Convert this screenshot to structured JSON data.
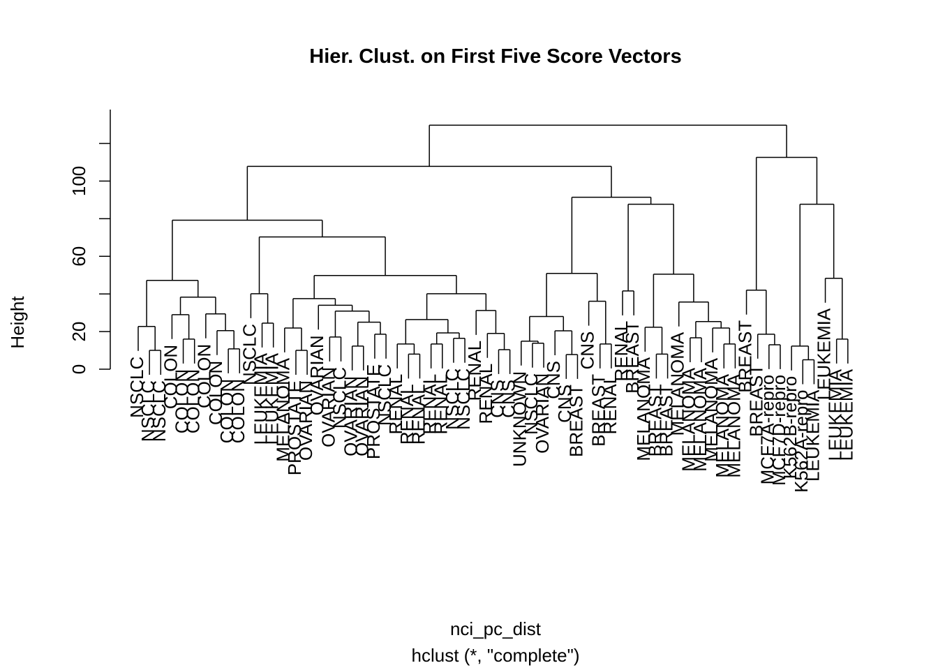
{
  "chart_data": {
    "type": "dendrogram",
    "title": "Hier. Clust. on First Five Score Vectors",
    "x_label": "nci_pc_dist",
    "subtitle": "hclust (*, \"complete\")",
    "y_label": "Height",
    "ylim": [
      0,
      138
    ],
    "yticks": [
      0,
      20,
      {
        "value": 40,
        "label": null
      },
      60,
      {
        "value": 80,
        "label": null
      },
      100,
      {
        "value": 120,
        "label": null
      }
    ],
    "hang": 0.1,
    "color": "#000000",
    "tree": {
      "height": 129.7,
      "children": [
        {
          "height": 107.8,
          "children": [
            {
              "height": 79.2,
              "children": [
                {
                  "height": 47.2,
                  "children": [
                    {
                      "height": 22.7,
                      "children": [
                        {
                          "label": "NSCLC"
                        },
                        {
                          "height": 10,
                          "children": [
                            {
                              "label": "NSCLC"
                            },
                            {
                              "label": "NSCLC"
                            }
                          ]
                        }
                      ]
                    },
                    {
                      "height": 38.3,
                      "children": [
                        {
                          "height": 29,
                          "children": [
                            {
                              "label": "COLON"
                            },
                            {
                              "height": 16,
                              "children": [
                                {
                                  "label": "COLON"
                                },
                                {
                                  "label": "COLON"
                                }
                              ]
                            }
                          ]
                        },
                        {
                          "height": 29.4,
                          "children": [
                            {
                              "label": "COLON"
                            },
                            {
                              "height": 20.5,
                              "children": [
                                {
                                  "label": "COLON"
                                },
                                {
                                  "height": 10.8,
                                  "children": [
                                    {
                                      "label": "COLON"
                                    },
                                    {
                                      "label": "COLON"
                                    }
                                  ]
                                }
                              ]
                            }
                          ]
                        }
                      ]
                    }
                  ]
                },
                {
                  "height": 70.3,
                  "children": [
                    {
                      "height": 40.1,
                      "children": [
                        {
                          "label": "NSCLC"
                        },
                        {
                          "height": 24.5,
                          "children": [
                            {
                              "label": "LEUKEMIA"
                            },
                            {
                              "label": "LEUKEMIA"
                            }
                          ]
                        }
                      ]
                    },
                    {
                      "height": 49.8,
                      "children": [
                        {
                          "height": 37.5,
                          "children": [
                            {
                              "height": 21.9,
                              "children": [
                                {
                                  "label": "MELANOMA"
                                },
                                {
                                  "height": 10,
                                  "children": [
                                    {
                                      "label": "PROSTATE"
                                    },
                                    {
                                      "label": "OVARIAN"
                                    }
                                  ]
                                }
                              ]
                            },
                            {
                              "height": 34,
                              "children": [
                                {
                                  "label": "OVARIAN"
                                },
                                {
                                  "height": 30.9,
                                  "children": [
                                    {
                                      "height": 17.1,
                                      "children": [
                                        {
                                          "label": "OVARIAN"
                                        },
                                        {
                                          "label": "NSCLC"
                                        }
                                      ]
                                    },
                                    {
                                      "height": 25,
                                      "children": [
                                        {
                                          "height": 12.3,
                                          "children": [
                                            {
                                              "label": "OVARIAN"
                                            },
                                            {
                                              "label": "OVARIAN"
                                            }
                                          ]
                                        },
                                        {
                                          "height": 18.6,
                                          "children": [
                                            {
                                              "label": "PROSTATE"
                                            },
                                            {
                                              "label": "NSCLC"
                                            }
                                          ]
                                        }
                                      ]
                                    }
                                  ]
                                }
                              ]
                            }
                          ]
                        },
                        {
                          "height": 40.1,
                          "children": [
                            {
                              "height": 26.4,
                              "children": [
                                {
                                  "height": 13.4,
                                  "children": [
                                    {
                                      "label": "RENAL"
                                    },
                                    {
                                      "height": 8,
                                      "children": [
                                        {
                                          "label": "RENAL"
                                        },
                                        {
                                          "label": "RENAL"
                                        }
                                      ]
                                    }
                                  ]
                                },
                                {
                                  "height": 19.3,
                                  "children": [
                                    {
                                      "height": 13.4,
                                      "children": [
                                        {
                                          "label": "RENAL"
                                        },
                                        {
                                          "label": "RENAL"
                                        }
                                      ]
                                    },
                                    {
                                      "height": 16.4,
                                      "children": [
                                        {
                                          "label": "NSCLC"
                                        },
                                        {
                                          "label": "NSCLC"
                                        }
                                      ]
                                    }
                                  ]
                                }
                              ]
                            },
                            {
                              "height": 31.2,
                              "children": [
                                {
                                  "label": "RENAL"
                                },
                                {
                                  "height": 19,
                                  "children": [
                                    {
                                      "label": "RENAL"
                                    },
                                    {
                                      "height": 10.4,
                                      "children": [
                                        {
                                          "label": "CNS"
                                        },
                                        {
                                          "label": "CNS"
                                        }
                                      ]
                                    }
                                  ]
                                }
                              ]
                            }
                          ]
                        }
                      ]
                    }
                  ]
                }
              ]
            },
            {
              "height": 91.4,
              "children": [
                {
                  "height": 50.9,
                  "children": [
                    {
                      "height": 28,
                      "children": [
                        {
                          "height": 14.9,
                          "children": [
                            {
                              "label": "UNKNOWN"
                            },
                            {
                              "height": 13.8,
                              "children": [
                                {
                                  "label": "NSCLC"
                                },
                                {
                                  "label": "OVARIAN"
                                }
                              ]
                            }
                          ]
                        },
                        {
                          "height": 20.4,
                          "children": [
                            {
                              "label": "CNS"
                            },
                            {
                              "height": 7.8,
                              "children": [
                                {
                                  "label": "CNS"
                                },
                                {
                                  "label": "BREAST"
                                }
                              ]
                            }
                          ]
                        }
                      ]
                    },
                    {
                      "height": 36.1,
                      "children": [
                        {
                          "label": "CNS"
                        },
                        {
                          "height": 13.4,
                          "children": [
                            {
                              "label": "BREAST"
                            },
                            {
                              "label": "RENAL"
                            }
                          ]
                        }
                      ]
                    }
                  ]
                },
                {
                  "height": 87.7,
                  "children": [
                    {
                      "height": 41.6,
                      "children": [
                        {
                          "label": "RENAL"
                        },
                        {
                          "label": "BREAST"
                        }
                      ]
                    },
                    {
                      "height": 50.5,
                      "children": [
                        {
                          "height": 22.3,
                          "children": [
                            {
                              "label": "MELANOMA"
                            },
                            {
                              "height": 8,
                              "children": [
                                {
                                  "label": "BREAST"
                                },
                                {
                                  "label": "BREAST"
                                }
                              ]
                            }
                          ]
                        },
                        {
                          "height": 35.7,
                          "children": [
                            {
                              "label": "MELANOMA"
                            },
                            {
                              "height": 25.3,
                              "children": [
                                {
                                  "height": 16.7,
                                  "children": [
                                    {
                                      "label": "MELANOMA"
                                    },
                                    {
                                      "label": "MELANOMA"
                                    }
                                  ]
                                },
                                {
                                  "height": 21.9,
                                  "children": [
                                    {
                                      "label": "MELANOMA"
                                    },
                                    {
                                      "height": 13.4,
                                      "children": [
                                        {
                                          "label": "MELANOMA"
                                        },
                                        {
                                          "label": "MELANOMA"
                                        }
                                      ]
                                    }
                                  ]
                                }
                              ]
                            }
                          ]
                        }
                      ]
                    }
                  ]
                }
              ]
            }
          ]
        },
        {
          "height": 112.6,
          "children": [
            {
              "height": 42,
              "children": [
                {
                  "label": "BREAST"
                },
                {
                  "height": 18.6,
                  "children": [
                    {
                      "label": "BREAST"
                    },
                    {
                      "height": 13,
                      "children": [
                        {
                          "label": "MCF7A-repro"
                        },
                        {
                          "label": "MCF7D-repro"
                        }
                      ]
                    }
                  ]
                }
              ]
            },
            {
              "height": 87.7,
              "children": [
                {
                  "height": 12.3,
                  "children": [
                    {
                      "label": "K562B-repro"
                    },
                    {
                      "height": 5,
                      "children": [
                        {
                          "label": "K562A-repro"
                        },
                        {
                          "label": "LEUKEMIA"
                        }
                      ]
                    }
                  ]
                },
                {
                  "height": 48.3,
                  "children": [
                    {
                      "label": "LEUKEMIA"
                    },
                    {
                      "height": 16,
                      "children": [
                        {
                          "label": "LEUKEMIA"
                        },
                        {
                          "label": "LEUKEMIA"
                        }
                      ]
                    }
                  ]
                }
              ]
            }
          ]
        }
      ]
    }
  }
}
